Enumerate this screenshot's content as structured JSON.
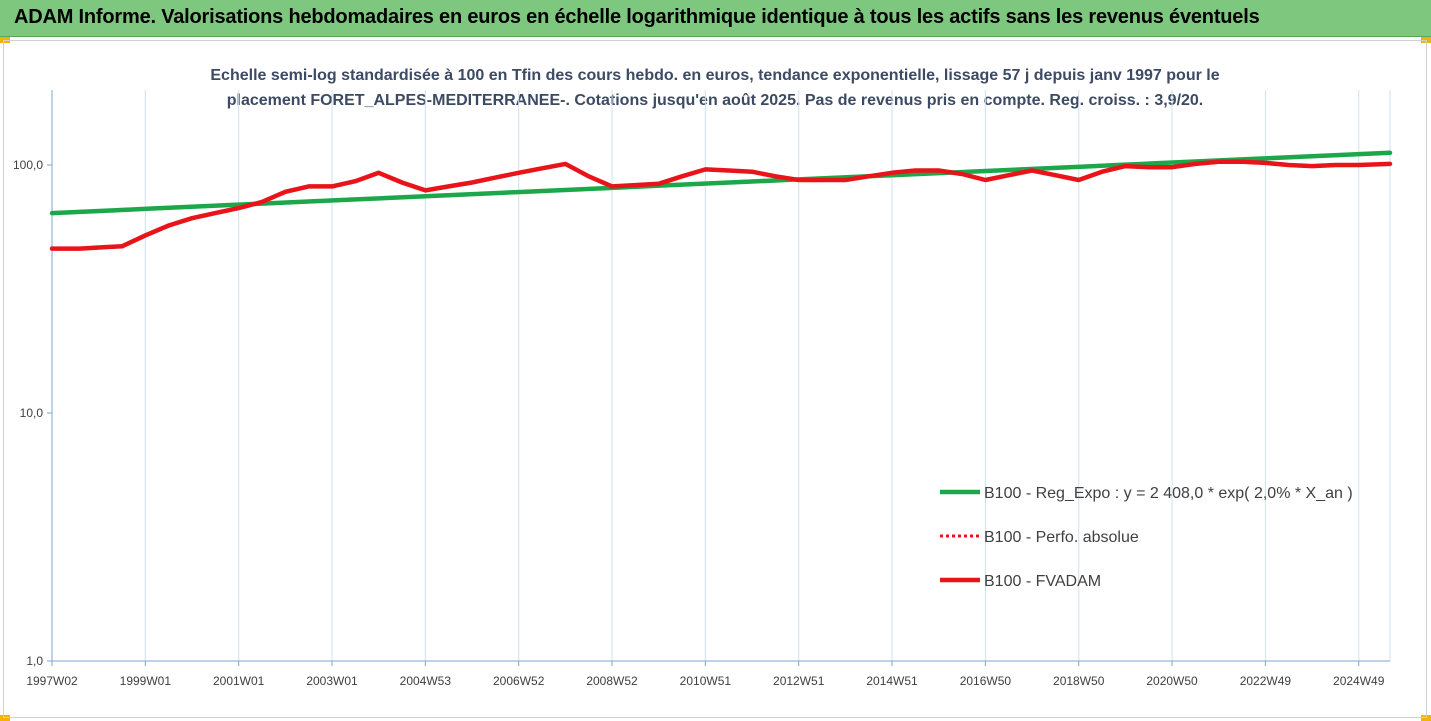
{
  "header": {
    "title": "ADAM Informe. Valorisations hebdomadaires en euros en échelle logarithmique identique à tous les actifs sans les revenus éventuels"
  },
  "colors": {
    "banner": "#7dc77f",
    "accent_corner": "#f2b400",
    "grid": "#cfe0f0",
    "axis": "#7fa6d0",
    "series_regression": "#1ca84a",
    "series_fvadam": "#e8141a",
    "series_perfo": "#e8141a"
  },
  "chart_data": {
    "type": "line",
    "title": "Echelle semi-log standardisée à 100 en Tfin des cours hebdo. en euros, tendance exponentielle, lissage 57 j depuis janv 1997 pour le placement FORET_ALPES-MEDITERRANEE-. Cotations jusqu'en août 2025. Pas de revenus pris en compte. Reg. croiss. : 3,9/20.",
    "title_lines": [
      "Echelle semi-log standardisée à 100 en Tfin des cours hebdo. en euros, tendance exponentielle, lissage 57 j depuis janv 1997 pour le",
      "placement FORET_ALPES-MEDITERRANEE-. Cotations jusqu'en août 2025. Pas de revenus pris en compte. Reg. croiss. : 3,9/20."
    ],
    "y_scale": "log",
    "ylim": [
      1,
      200
    ],
    "y_ticks": [
      {
        "value": 1,
        "label": "1,0"
      },
      {
        "value": 10,
        "label": "10,0"
      },
      {
        "value": 100,
        "label": "100,0"
      }
    ],
    "xlim": [
      1997.0,
      2025.67
    ],
    "x_ticks": [
      {
        "value": 1997.0,
        "label": "1997W02"
      },
      {
        "value": 1999.0,
        "label": "1999W01"
      },
      {
        "value": 2001.0,
        "label": "2001W01"
      },
      {
        "value": 2003.0,
        "label": "2003W01"
      },
      {
        "value": 2005.0,
        "label": "2004W53"
      },
      {
        "value": 2007.0,
        "label": "2006W52"
      },
      {
        "value": 2009.0,
        "label": "2008W52"
      },
      {
        "value": 2011.0,
        "label": "2010W51"
      },
      {
        "value": 2013.0,
        "label": "2012W51"
      },
      {
        "value": 2015.0,
        "label": "2014W51"
      },
      {
        "value": 2017.0,
        "label": "2016W50"
      },
      {
        "value": 2019.0,
        "label": "2018W50"
      },
      {
        "value": 2021.0,
        "label": "2020W50"
      },
      {
        "value": 2023.0,
        "label": "2022W49"
      },
      {
        "value": 2025.0,
        "label": "2024W49"
      }
    ],
    "grid": "vertical",
    "legend_position": "right",
    "series": [
      {
        "name": "B100 - Reg_Expo : y = 2 408,0 * exp( 2,0% *  X_an )",
        "style": "solid-thick",
        "color": "#1ca84a",
        "x": [
          1997.0,
          2025.67
        ],
        "y": [
          64.0,
          112.0
        ]
      },
      {
        "name": "B100 - Perfo. absolue",
        "style": "dotted",
        "color": "#e8141a",
        "x": [],
        "y": []
      },
      {
        "name": "B100 - FVADAM",
        "style": "solid-thick",
        "color": "#e8141a",
        "x": [
          1997.0,
          1997.6,
          1998.0,
          1998.5,
          1999.0,
          1999.5,
          2000.0,
          2000.5,
          2001.0,
          2001.5,
          2002.0,
          2002.5,
          2003.0,
          2003.5,
          2004.0,
          2004.5,
          2005.0,
          2005.5,
          2006.0,
          2006.5,
          2007.0,
          2007.5,
          2008.0,
          2008.5,
          2009.0,
          2009.5,
          2010.0,
          2010.5,
          2011.0,
          2011.5,
          2012.0,
          2012.5,
          2013.0,
          2013.5,
          2014.0,
          2014.5,
          2015.0,
          2015.5,
          2016.0,
          2016.5,
          2017.0,
          2017.5,
          2018.0,
          2018.5,
          2019.0,
          2019.5,
          2020.0,
          2020.5,
          2021.0,
          2021.5,
          2022.0,
          2022.5,
          2023.0,
          2023.5,
          2024.0,
          2024.5,
          2025.0,
          2025.67
        ],
        "y": [
          46,
          46,
          46.5,
          47,
          52,
          57,
          61,
          64,
          67,
          71,
          78,
          82,
          82,
          86,
          93,
          85,
          79,
          82,
          85,
          89,
          93,
          97,
          101,
          90,
          82,
          83,
          84,
          90,
          96,
          95,
          94,
          90,
          87,
          87,
          87,
          90,
          93,
          95,
          95,
          92,
          87,
          91,
          95,
          91,
          87,
          94,
          99,
          98,
          98,
          101,
          103,
          103,
          102,
          100,
          99,
          100,
          100,
          101
        ]
      }
    ]
  }
}
